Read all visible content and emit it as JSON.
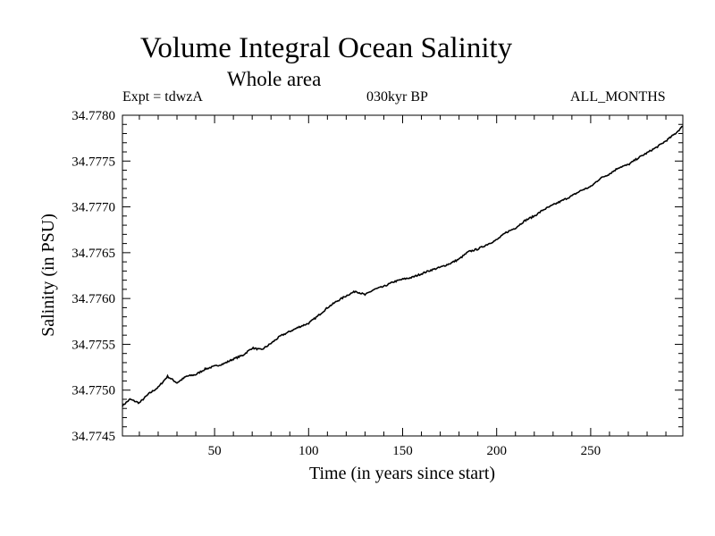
{
  "chart_data": {
    "type": "line",
    "title": "Volume Integral Ocean Salinity",
    "subtitle": "Whole area",
    "experiment_label": "Expt = tdwzA",
    "period_label": "030kyr BP",
    "season_label": "ALL_MONTHS",
    "xlabel": "Time (in years since start)",
    "ylabel": "Salinity (in PSU)",
    "xlim": [
      1,
      299
    ],
    "ylim": [
      34.7745,
      34.778
    ],
    "x_ticks": [
      50,
      100,
      150,
      200,
      250
    ],
    "x_tick_labels": [
      "50",
      "100",
      "150",
      "200",
      "250"
    ],
    "y_ticks": [
      34.7745,
      34.775,
      34.7755,
      34.776,
      34.7765,
      34.777,
      34.7775,
      34.778
    ],
    "y_tick_labels": [
      "34.7745",
      "34.7750",
      "34.7755",
      "34.7760",
      "34.7765",
      "34.7770",
      "34.7775",
      "34.7780"
    ],
    "grid": false,
    "line_color": "#000000",
    "series": [
      {
        "x": [
          1,
          5,
          10,
          15,
          20,
          25,
          30,
          35,
          40,
          45,
          50,
          55,
          60,
          65,
          70,
          75,
          80,
          85,
          90,
          95,
          100,
          105,
          110,
          115,
          120,
          125,
          130,
          135,
          140,
          145,
          150,
          155,
          160,
          165,
          170,
          175,
          180,
          185,
          190,
          195,
          200,
          205,
          210,
          215,
          220,
          225,
          230,
          235,
          240,
          245,
          250,
          255,
          260,
          265,
          270,
          275,
          280,
          285,
          290,
          295,
          299
        ],
        "y": [
          34.77483,
          34.7749,
          34.77486,
          34.77496,
          34.77503,
          34.77515,
          34.77508,
          34.77515,
          34.77517,
          34.77523,
          34.77526,
          34.77529,
          34.77534,
          34.77538,
          34.77546,
          34.77544,
          34.77551,
          34.77559,
          34.77564,
          34.77569,
          34.77573,
          34.77581,
          34.7759,
          34.77597,
          34.77603,
          34.77608,
          34.77604,
          34.7761,
          34.77613,
          34.77618,
          34.77621,
          34.77623,
          34.77627,
          34.77631,
          34.77634,
          34.77638,
          34.77643,
          34.77651,
          34.77654,
          34.77659,
          34.77664,
          34.77672,
          34.77677,
          34.77685,
          34.7769,
          34.77697,
          34.77702,
          34.77707,
          34.77712,
          34.77718,
          34.77722,
          34.77731,
          34.77736,
          34.77743,
          34.77746,
          34.77753,
          34.77759,
          34.77765,
          34.77772,
          34.7778,
          34.77788
        ]
      }
    ]
  }
}
